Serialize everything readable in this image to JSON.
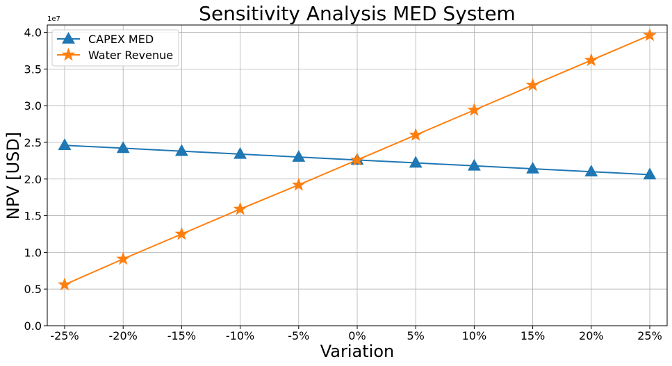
{
  "chart_data": {
    "type": "line",
    "title": "Sensitivity Analysis MED System",
    "xlabel": "Variation",
    "ylabel": "NPV [USD]",
    "y_offset_label": "1e7",
    "categories": [
      "-25%",
      "-20%",
      "-15%",
      "-10%",
      "-5%",
      "0%",
      "5%",
      "10%",
      "15%",
      "20%",
      "25%"
    ],
    "ylim": [
      0,
      4.1
    ],
    "yticks": [
      "0.0",
      "0.5",
      "1.0",
      "1.5",
      "2.0",
      "2.5",
      "3.0",
      "3.5",
      "4.0"
    ],
    "grid": true,
    "legend_position": "upper-left",
    "series": [
      {
        "name": "CAPEX MED",
        "color": "#1f77b4",
        "marker": "triangle",
        "values": [
          2.46,
          2.42,
          2.38,
          2.34,
          2.3,
          2.26,
          2.22,
          2.18,
          2.14,
          2.1,
          2.06
        ]
      },
      {
        "name": "Water Revenue",
        "color": "#ff7f0e",
        "marker": "star",
        "values": [
          0.56,
          0.91,
          1.25,
          1.59,
          1.92,
          2.26,
          2.6,
          2.94,
          3.28,
          3.62,
          3.96
        ]
      }
    ]
  }
}
